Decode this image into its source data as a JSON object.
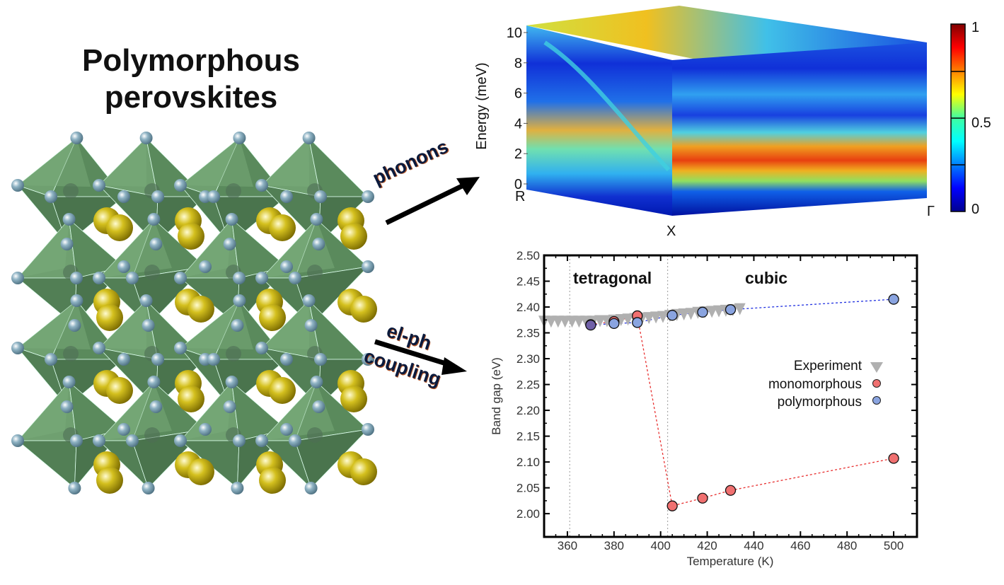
{
  "title": {
    "line1": "Polymorphous",
    "line2": "perovskites"
  },
  "arrows": {
    "phonons_label": "phonons",
    "elph_label_1": "el-ph",
    "elph_label_2": "coupling"
  },
  "structure": {
    "description": "Perovskite crystal structure with green octahedra, light-blue anion spheres and yellow cation spheres",
    "colors": {
      "octahedra": "#5e8f5e",
      "anion": "#8fb3c4",
      "cation": "#d4c01e"
    }
  },
  "chart_data": [
    {
      "type": "heatmap",
      "title": "",
      "ylabel": "Energy (meV)",
      "ylim": [
        0,
        10
      ],
      "yticks": [
        "0",
        "2",
        "4",
        "6",
        "8",
        "10"
      ],
      "path_labels": [
        "R",
        "X",
        "Γ"
      ],
      "colorbar": {
        "ticks": [
          "0",
          "0.5",
          "1"
        ],
        "range": [
          0,
          1
        ],
        "colormap": "jet"
      },
      "features": [
        {
          "description": "Strong intensity band along X-Γ",
          "energy_meV": 2.5,
          "intensity": 0.85
        },
        {
          "description": "Secondary band near X",
          "energy_meV": 1.0,
          "intensity": 0.65
        },
        {
          "description": "Dispersive branch from R region descending toward X",
          "energy_meV_range": [
            10,
            2
          ]
        },
        {
          "description": "Band along R-X at ~4 meV",
          "energy_meV": 4.0,
          "intensity": 0.6
        }
      ]
    },
    {
      "type": "scatter",
      "title": "",
      "xlabel": "Temperature (K)",
      "ylabel": "Band gap (eV)",
      "xlim": [
        350,
        510
      ],
      "ylim": [
        1.955,
        2.5
      ],
      "xticks": [
        360,
        380,
        400,
        420,
        440,
        460,
        480,
        500
      ],
      "yticks": [
        "2.00",
        "2.05",
        "2.10",
        "2.15",
        "2.20",
        "2.25",
        "2.30",
        "2.35",
        "2.40",
        "2.45",
        "2.50"
      ],
      "phase_boundaries": [
        361,
        403
      ],
      "phase_labels": [
        "tetragonal",
        "cubic"
      ],
      "legend": {
        "position": "center-right"
      },
      "series": [
        {
          "name": "Experiment",
          "marker": "triangle-down",
          "color": "#b0b0b0",
          "x": [
            350,
            353,
            356,
            359,
            362,
            365,
            368,
            371,
            374,
            377,
            380,
            383,
            386,
            389,
            392,
            395,
            398,
            401,
            404,
            407,
            410,
            413,
            416,
            419,
            422,
            425,
            428,
            431,
            434
          ],
          "y": [
            2.371,
            2.371,
            2.371,
            2.371,
            2.371,
            2.371,
            2.371,
            2.371,
            2.372,
            2.372,
            2.373,
            2.374,
            2.375,
            2.376,
            2.377,
            2.378,
            2.379,
            2.38,
            2.382,
            2.384,
            2.385,
            2.386,
            2.388,
            2.389,
            2.39,
            2.391,
            2.392,
            2.393,
            2.395
          ]
        },
        {
          "name": "monomorphous",
          "marker": "circle",
          "color": "#f07070",
          "line": "#e83030",
          "x": [
            370,
            380,
            390,
            405,
            418,
            430,
            500
          ],
          "y": [
            2.366,
            2.372,
            2.383,
            2.015,
            2.03,
            2.045,
            2.107
          ]
        },
        {
          "name": "polymorphous",
          "marker": "circle",
          "color": "#8aa4e0",
          "line": "#2030e0",
          "x": [
            370,
            380,
            390,
            405,
            418,
            430,
            500
          ],
          "y": [
            2.365,
            2.368,
            2.37,
            2.384,
            2.39,
            2.395,
            2.415
          ]
        }
      ]
    }
  ]
}
